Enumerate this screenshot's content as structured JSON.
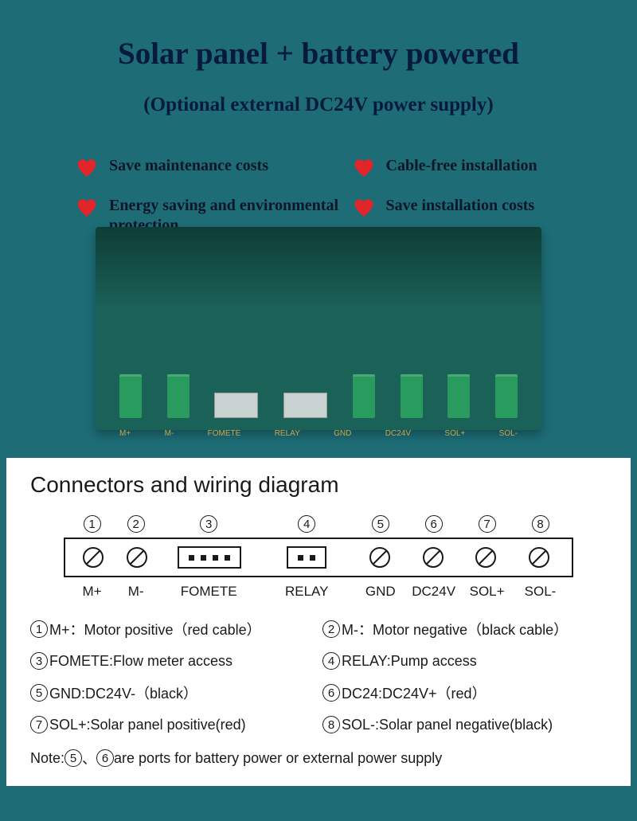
{
  "colors": {
    "page_bg": "#1d6c76",
    "title_color": "#061a3d",
    "heart_color": "#e2252b",
    "feature_text": "#0c1628",
    "pcb_board": "#1a6157",
    "pcb_dark": "#0e3d36",
    "conn_green": "#2a9b5e",
    "pcb_label": "#c9a94a",
    "diagram_bg": "#ffffff",
    "diagram_text": "#1a1a1a"
  },
  "typography": {
    "title_size": 39,
    "subtitle_size": 25,
    "feature_size": 20,
    "diag_title_size": 28
  },
  "header": {
    "title": "Solar panel + battery powered",
    "subtitle": "(Optional external DC24V power supply)"
  },
  "features": [
    {
      "text": "Save maintenance costs"
    },
    {
      "text": "Cable-free installation"
    },
    {
      "text": "Energy saving and environmental protection"
    },
    {
      "text": "Save installation costs"
    }
  ],
  "pcb": {
    "labels": [
      "M+",
      "M-",
      "FOMETE",
      "RELAY",
      "GND",
      "DC24V",
      "SOL+",
      "SOL-"
    ]
  },
  "diagram": {
    "title": "Connectors and wiring diagram",
    "cols": [
      {
        "num": "1",
        "type": "screw",
        "label": "M+",
        "w": 56
      },
      {
        "num": "2",
        "type": "screw",
        "label": "M-",
        "w": 56
      },
      {
        "num": "3",
        "type": "pin4",
        "label": "FOMETE",
        "w": 130
      },
      {
        "num": "4",
        "type": "pin2",
        "label": "RELAY",
        "w": 120
      },
      {
        "num": "5",
        "type": "screw",
        "label": "GND",
        "w": 68
      },
      {
        "num": "6",
        "type": "screw",
        "label": "DC24V",
        "w": 68
      },
      {
        "num": "7",
        "type": "screw",
        "label": "SOL+",
        "w": 68
      },
      {
        "num": "8",
        "type": "screw",
        "label": "SOL-",
        "w": 68
      }
    ],
    "legend": [
      {
        "num": "1",
        "text": "M+：Motor positive（red cable）"
      },
      {
        "num": "2",
        "text": "M-：Motor negative（black cable）"
      },
      {
        "num": "3",
        "text": "FOMETE:Flow meter access"
      },
      {
        "num": "4",
        "text": "RELAY:Pump access"
      },
      {
        "num": "5",
        "text": "GND:DC24V-（black）"
      },
      {
        "num": "6",
        "text": "DC24:DC24V+（red）"
      },
      {
        "num": "7",
        "text": "SOL+:Solar panel positive(red)"
      },
      {
        "num": "8",
        "text": "SOL-:Solar panel negative(black)"
      }
    ],
    "note": {
      "prefix": "Note:",
      "refs": [
        "5",
        "6"
      ],
      "sep": "、",
      "suffix": "are ports for battery power or external power supply"
    }
  }
}
